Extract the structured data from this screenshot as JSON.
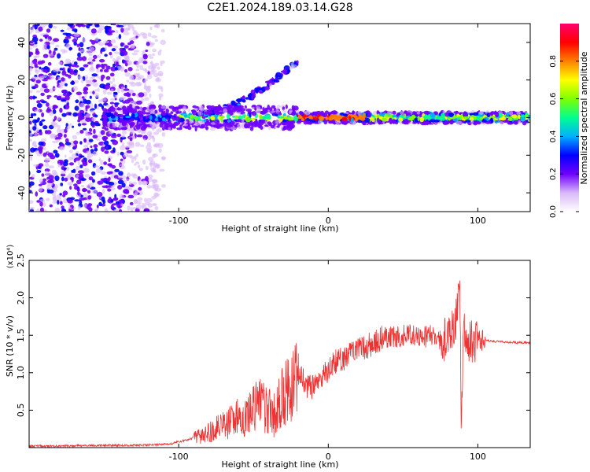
{
  "title": "C2E1.2024.189.03.14.G28",
  "chart_data": [
    {
      "type": "heatmap",
      "xlabel": "Height of straight line (km)",
      "ylabel": "Frequency (Hz)",
      "xlim": [
        -200,
        135
      ],
      "ylim": [
        -50,
        50
      ],
      "xticks": [
        -100,
        0,
        100
      ],
      "yticks": [
        -40,
        -20,
        0,
        20,
        40
      ],
      "colorbar": {
        "label": "Normalized spectral amplitude",
        "range": [
          0,
          1
        ],
        "ticks": [
          "0.0",
          "0.2",
          "0.4",
          "0.6",
          "0.8"
        ],
        "colors": [
          "#ffffff",
          "#d8b8f8",
          "#7000ff",
          "#0000ff",
          "#00b0ff",
          "#00ff90",
          "#80ff00",
          "#ffff00",
          "#ff8000",
          "#ff0000",
          "#ff0070"
        ]
      }
    },
    {
      "type": "line",
      "xlabel": "Height of straight line (km)",
      "ylabel": "SNR (10 * v/v)",
      "multiplier": "(x10⁴)",
      "xlim": [
        -200,
        135
      ],
      "ylim": [
        0,
        2.5
      ],
      "xticks": [
        -100,
        0,
        100
      ],
      "yticks": [
        "0.5",
        "1.0",
        "1.5",
        "2.0",
        "2.5"
      ],
      "color": "#ee3333",
      "series": [
        {
          "x": [
            -200,
            -180,
            -160,
            -140,
            -125,
            -115,
            -105,
            -100,
            -95,
            -90,
            -85,
            -80,
            -75,
            -70,
            -65,
            -60,
            -55,
            -50,
            -45,
            -42,
            -38,
            -35,
            -30,
            -25,
            -22,
            -18,
            -15,
            -10,
            -5,
            0,
            5,
            10,
            15,
            20,
            25,
            30,
            35,
            40,
            45,
            50,
            55,
            60,
            65,
            70,
            75,
            80,
            85,
            88,
            89,
            90,
            91,
            92,
            95,
            100,
            105,
            110,
            120,
            130,
            135
          ],
          "y": [
            0.02,
            0.02,
            0.03,
            0.03,
            0.03,
            0.04,
            0.05,
            0.08,
            0.1,
            0.13,
            0.17,
            0.2,
            0.25,
            0.3,
            0.35,
            0.4,
            0.45,
            0.5,
            0.55,
            0.5,
            0.45,
            0.45,
            0.7,
            0.8,
            0.85,
            0.95,
            0.8,
            0.8,
            0.9,
            1.05,
            1.15,
            1.2,
            1.25,
            1.3,
            1.35,
            1.4,
            1.45,
            1.48,
            1.47,
            1.5,
            1.52,
            1.5,
            1.48,
            1.5,
            1.45,
            1.45,
            1.7,
            2.1,
            0.2,
            1.4,
            1.6,
            1.45,
            1.4,
            1.42,
            1.43,
            1.42,
            1.41,
            1.4,
            1.4
          ]
        }
      ]
    }
  ]
}
